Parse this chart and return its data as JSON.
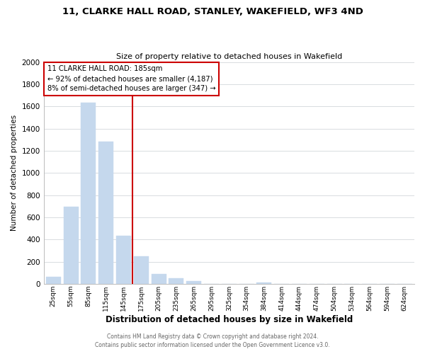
{
  "title": "11, CLARKE HALL ROAD, STANLEY, WAKEFIELD, WF3 4ND",
  "subtitle": "Size of property relative to detached houses in Wakefield",
  "xlabel": "Distribution of detached houses by size in Wakefield",
  "ylabel": "Number of detached properties",
  "bar_color": "#c5d8ed",
  "reference_line_color": "#cc0000",
  "annotation_line1": "11 CLARKE HALL ROAD: 185sqm",
  "annotation_line2": "← 92% of detached houses are smaller (4,187)",
  "annotation_line3": "8% of semi-detached houses are larger (347) →",
  "annotation_box_color": "#ffffff",
  "annotation_box_edge": "#cc0000",
  "footer1": "Contains HM Land Registry data © Crown copyright and database right 2024.",
  "footer2": "Contains public sector information licensed under the Open Government Licence v3.0.",
  "bin_labels": [
    "25sqm",
    "55sqm",
    "85sqm",
    "115sqm",
    "145sqm",
    "175sqm",
    "205sqm",
    "235sqm",
    "265sqm",
    "295sqm",
    "325sqm",
    "354sqm",
    "384sqm",
    "414sqm",
    "444sqm",
    "474sqm",
    "504sqm",
    "534sqm",
    "564sqm",
    "594sqm",
    "624sqm"
  ],
  "bar_heights": [
    65,
    695,
    1635,
    1285,
    435,
    250,
    90,
    50,
    25,
    0,
    0,
    0,
    15,
    0,
    0,
    0,
    0,
    0,
    0,
    0,
    0
  ],
  "reference_bin_index": 5,
  "ylim": [
    0,
    2000
  ],
  "yticks": [
    0,
    200,
    400,
    600,
    800,
    1000,
    1200,
    1400,
    1600,
    1800,
    2000
  ],
  "background_color": "#ffffff",
  "grid_color": "#d8dce0"
}
